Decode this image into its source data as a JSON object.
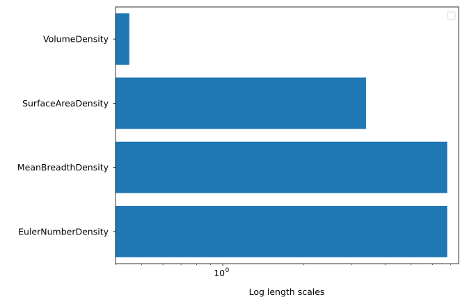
{
  "chart_data": {
    "type": "bar",
    "orientation": "horizontal",
    "categories": [
      "VolumeDensity",
      "SurfaceAreaDensity",
      "MeanBreadthDensity",
      "EulerNumberDensity"
    ],
    "values": [
      0.45,
      3.4,
      6.8,
      6.8
    ],
    "title": "",
    "xlabel": "Log length scales",
    "ylabel": "",
    "xscale": "log",
    "xlim": [
      0.4,
      7.5
    ],
    "x_major_ticks": [
      {
        "value": 1,
        "base": "10",
        "exponent": "0"
      }
    ],
    "x_minor_ticks": [
      0.4,
      0.5,
      0.6,
      0.7,
      0.8,
      0.9,
      2,
      3,
      4,
      5,
      6,
      7
    ],
    "grid": false,
    "legend": {
      "placement": "top-right",
      "entries": []
    },
    "bar_color": "#1f77b4"
  }
}
